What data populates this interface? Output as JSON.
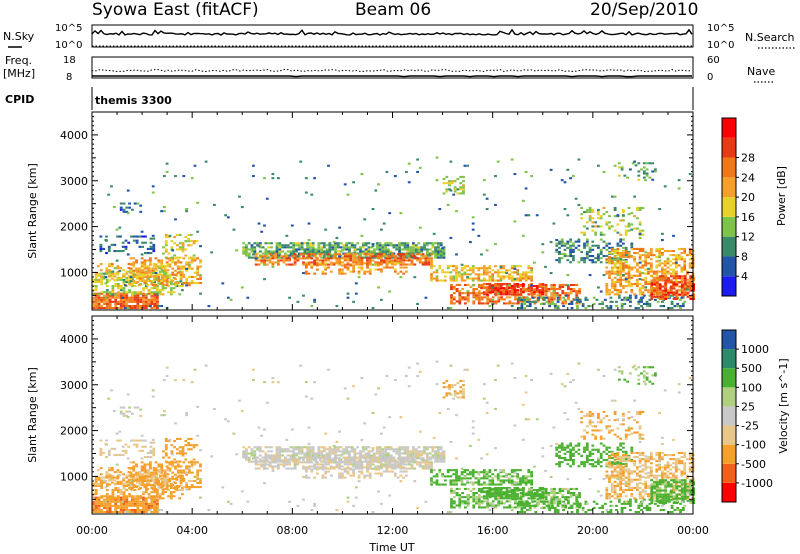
{
  "header": {
    "station": "Syowa East (fitACF)",
    "beam": "Beam 06",
    "date": "20/Sep/2010"
  },
  "panels": {
    "nsky_label": "N.Sky",
    "nsearch_label": "N.Search",
    "nsky_ticks": [
      "10^5",
      "10^0"
    ],
    "nsearch_ticks": [
      "10^5",
      "10^0"
    ],
    "freq_label_1": "Freq.",
    "freq_label_2": "[MHz]",
    "freq_ticks": [
      "18",
      "8"
    ],
    "nave_label": "Nave",
    "nave_ticks": [
      "60",
      "0"
    ],
    "cpid_label": "CPID",
    "cpid_value": "themis 3300"
  },
  "colors": {
    "power": [
      "#1c1cf0",
      "#2255a8",
      "#3a8a6a",
      "#7ec44a",
      "#e8d22a",
      "#f5a02a",
      "#f07818",
      "#e83a14",
      "#ff0000"
    ],
    "velocity": [
      "#ff0000",
      "#f06018",
      "#f5a02a",
      "#e8c88a",
      "#c8c8c8",
      "#b0d080",
      "#4ab030",
      "#2a8a6a",
      "#2255a8"
    ],
    "background": "#ffffff",
    "axis": "#000000"
  },
  "chart_data": [
    {
      "type": "heatmap",
      "title": "Power",
      "xlabel": "",
      "ylabel": "Slant Range [km]",
      "xlim": [
        "00:00",
        "24:00"
      ],
      "ylim": [
        180,
        4500
      ],
      "x_ticks": [
        "00:00",
        "04:00",
        "08:00",
        "12:00",
        "16:00",
        "20:00",
        "00:00"
      ],
      "y_ticks": [
        "1000",
        "2000",
        "3000",
        "4000"
      ],
      "colorbar_label": "Power [dB]",
      "colorbar_ticks": [
        "4",
        "8",
        "12",
        "16",
        "20",
        "24",
        "28"
      ],
      "colorbar_range": [
        0,
        32
      ],
      "grid": false
    },
    {
      "type": "heatmap",
      "title": "Velocity",
      "xlabel": "Time UT",
      "ylabel": "Slant Range [km]",
      "xlim": [
        "00:00",
        "24:00"
      ],
      "ylim": [
        180,
        4500
      ],
      "x_ticks": [
        "00:00",
        "04:00",
        "08:00",
        "12:00",
        "16:00",
        "20:00",
        "00:00"
      ],
      "y_ticks": [
        "1000",
        "2000",
        "3000",
        "4000"
      ],
      "colorbar_label": "Velocity [m s^-1]",
      "colorbar_ticks": [
        "-1000",
        "-500",
        "-100",
        "-25",
        "25",
        "100",
        "500",
        "1000"
      ],
      "grid": false
    }
  ]
}
